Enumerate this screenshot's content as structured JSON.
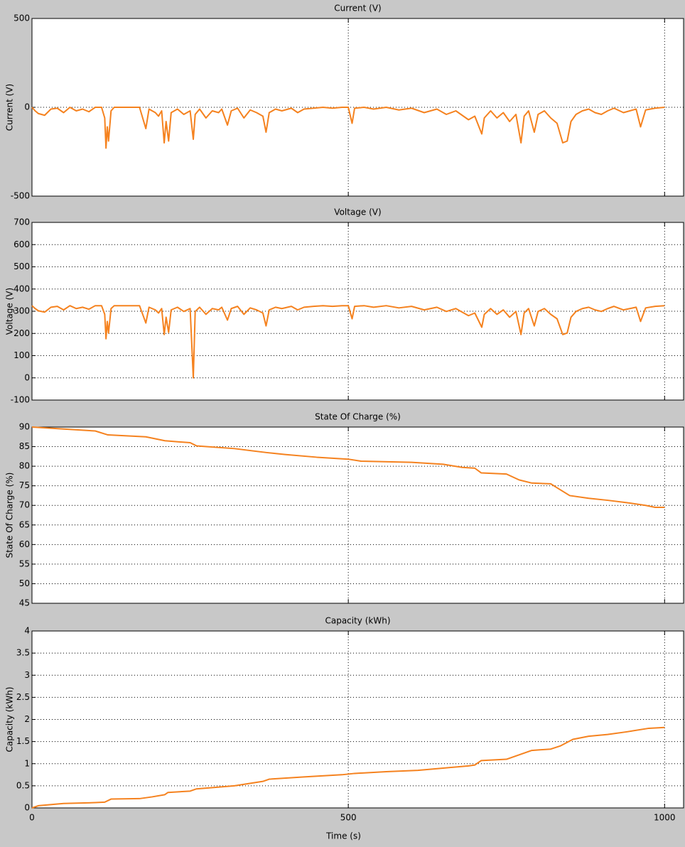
{
  "chart_data": [
    {
      "type": "line",
      "title": "Current (V)",
      "ylabel": "Current (V)",
      "xlim": [
        0,
        1030
      ],
      "xticks": [
        0,
        500,
        1000
      ],
      "ylim": [
        -500,
        500
      ],
      "yticks": [
        -500,
        0,
        500
      ],
      "grid": true,
      "show_xtick_labels": false,
      "series": [
        {
          "name": "Current",
          "color": "#f5821f",
          "x": [
            0,
            5,
            10,
            20,
            30,
            40,
            50,
            60,
            70,
            80,
            90,
            100,
            110,
            115,
            117,
            119,
            121,
            125,
            130,
            150,
            170,
            180,
            185,
            195,
            200,
            205,
            209,
            212,
            216,
            220,
            230,
            240,
            250,
            255,
            258,
            265,
            275,
            285,
            295,
            300,
            309,
            315,
            325,
            335,
            345,
            355,
            365,
            370,
            375,
            385,
            395,
            410,
            420,
            430,
            445,
            460,
            475,
            490,
            500,
            506,
            510,
            525,
            540,
            560,
            580,
            600,
            620,
            640,
            655,
            670,
            690,
            700,
            711,
            715,
            725,
            735,
            745,
            755,
            765,
            773,
            778,
            785,
            794,
            800,
            810,
            820,
            830,
            839,
            846,
            852,
            860,
            870,
            880,
            890,
            900,
            910,
            920,
            935,
            945,
            955,
            962,
            970,
            985,
            1000
          ],
          "values": [
            0,
            -20,
            -35,
            -45,
            -10,
            -5,
            -30,
            0,
            -20,
            -10,
            -25,
            0,
            0,
            -60,
            -230,
            -110,
            -190,
            -20,
            0,
            0,
            0,
            -120,
            -10,
            -30,
            -50,
            -20,
            -200,
            -80,
            -190,
            -30,
            -10,
            -40,
            -20,
            -180,
            -40,
            -10,
            -60,
            -20,
            -30,
            -10,
            -100,
            -20,
            -5,
            -60,
            -15,
            -30,
            -50,
            -140,
            -30,
            -10,
            -20,
            -5,
            -30,
            -10,
            -5,
            0,
            -5,
            0,
            0,
            -90,
            -5,
            0,
            -10,
            0,
            -15,
            -5,
            -30,
            -10,
            -40,
            -20,
            -70,
            -50,
            -150,
            -60,
            -20,
            -60,
            -30,
            -80,
            -40,
            -200,
            -50,
            -20,
            -140,
            -40,
            -20,
            -60,
            -90,
            -200,
            -190,
            -80,
            -40,
            -20,
            -10,
            -30,
            -40,
            -20,
            -5,
            -30,
            -20,
            -10,
            -110,
            -15,
            -5,
            0
          ]
        }
      ]
    },
    {
      "type": "line",
      "title": "Voltage (V)",
      "ylabel": "Voltage (V)",
      "xlim": [
        0,
        1030
      ],
      "xticks": [
        0,
        500,
        1000
      ],
      "ylim": [
        -100,
        700
      ],
      "yticks": [
        -100,
        0,
        100,
        200,
        300,
        400,
        500,
        600,
        700
      ],
      "grid": true,
      "show_xtick_labels": false,
      "series": [
        {
          "name": "Voltage",
          "color": "#f5821f",
          "x": [
            0,
            5,
            10,
            20,
            30,
            40,
            50,
            60,
            70,
            80,
            90,
            100,
            110,
            115,
            117,
            119,
            121,
            125,
            130,
            150,
            170,
            180,
            185,
            195,
            200,
            205,
            209,
            212,
            216,
            220,
            230,
            240,
            250,
            255,
            258,
            265,
            275,
            285,
            295,
            300,
            309,
            315,
            325,
            335,
            345,
            355,
            365,
            370,
            375,
            385,
            395,
            410,
            420,
            430,
            445,
            460,
            475,
            490,
            500,
            506,
            510,
            525,
            540,
            560,
            580,
            600,
            620,
            640,
            655,
            670,
            690,
            700,
            711,
            715,
            725,
            735,
            745,
            755,
            765,
            773,
            778,
            785,
            794,
            800,
            810,
            820,
            830,
            839,
            846,
            852,
            860,
            870,
            880,
            890,
            900,
            910,
            920,
            935,
            945,
            955,
            962,
            970,
            985,
            1000
          ],
          "values": [
            325,
            312,
            302,
            296,
            318,
            322,
            306,
            325,
            312,
            318,
            309,
            325,
            325,
            286,
            176,
            254,
            202,
            312,
            325,
            325,
            325,
            247,
            318,
            306,
            292,
            312,
            195,
            273,
            205,
            306,
            318,
            299,
            312,
            0,
            299,
            318,
            286,
            312,
            306,
            318,
            260,
            312,
            322,
            286,
            315,
            306,
            292,
            234,
            306,
            318,
            312,
            322,
            306,
            318,
            322,
            325,
            322,
            325,
            325,
            266,
            322,
            325,
            318,
            325,
            315,
            322,
            306,
            318,
            299,
            312,
            280,
            292,
            228,
            286,
            312,
            286,
            306,
            273,
            299,
            195,
            292,
            312,
            234,
            299,
            312,
            286,
            266,
            195,
            202,
            273,
            299,
            312,
            318,
            306,
            299,
            312,
            322,
            306,
            312,
            318,
            254,
            315,
            322,
            325
          ]
        }
      ]
    },
    {
      "type": "line",
      "title": "State Of Charge (%)",
      "ylabel": "State Of Charge (%)",
      "xlim": [
        0,
        1030
      ],
      "xticks": [
        0,
        500,
        1000
      ],
      "ylim": [
        45,
        90
      ],
      "yticks": [
        45,
        50,
        55,
        60,
        65,
        70,
        75,
        80,
        85,
        90
      ],
      "grid": true,
      "show_xtick_labels": false,
      "series": [
        {
          "name": "State Of Charge",
          "color": "#f5821f",
          "x": [
            0,
            50,
            100,
            120,
            180,
            210,
            250,
            260,
            320,
            370,
            400,
            450,
            500,
            520,
            600,
            650,
            680,
            700,
            710,
            750,
            770,
            790,
            820,
            830,
            850,
            880,
            910,
            940,
            970,
            985,
            1000
          ],
          "values": [
            90,
            89.5,
            89,
            88,
            87.5,
            86.5,
            86,
            85.2,
            84.5,
            83.5,
            83,
            82.3,
            81.8,
            81.3,
            81,
            80.5,
            79.7,
            79.5,
            78.3,
            78,
            76.5,
            75.7,
            75.5,
            74.5,
            72.5,
            71.8,
            71.3,
            70.7,
            70,
            69.5,
            69.5
          ]
        }
      ]
    },
    {
      "type": "line",
      "title": "Capacity (kWh)",
      "ylabel": "Capacity (kWh)",
      "xlabel": "Time (s)",
      "xlim": [
        0,
        1030
      ],
      "xticks": [
        0,
        500,
        1000
      ],
      "ylim": [
        0,
        4
      ],
      "yticks": [
        0,
        0.5,
        1,
        1.5,
        2,
        2.5,
        3,
        3.5,
        4
      ],
      "grid": true,
      "show_xtick_labels": true,
      "series": [
        {
          "name": "Capacity",
          "color": "#f5821f",
          "x": [
            0,
            10,
            50,
            100,
            115,
            125,
            170,
            190,
            210,
            215,
            250,
            260,
            320,
            365,
            375,
            430,
            490,
            510,
            560,
            610,
            650,
            690,
            700,
            710,
            750,
            770,
            790,
            820,
            835,
            855,
            880,
            910,
            940,
            975,
            1000
          ],
          "values": [
            0,
            0.05,
            0.1,
            0.12,
            0.13,
            0.2,
            0.21,
            0.25,
            0.3,
            0.35,
            0.38,
            0.43,
            0.5,
            0.6,
            0.65,
            0.7,
            0.75,
            0.78,
            0.82,
            0.85,
            0.9,
            0.95,
            0.97,
            1.07,
            1.1,
            1.2,
            1.3,
            1.33,
            1.4,
            1.55,
            1.62,
            1.66,
            1.72,
            1.8,
            1.82
          ]
        }
      ]
    }
  ]
}
